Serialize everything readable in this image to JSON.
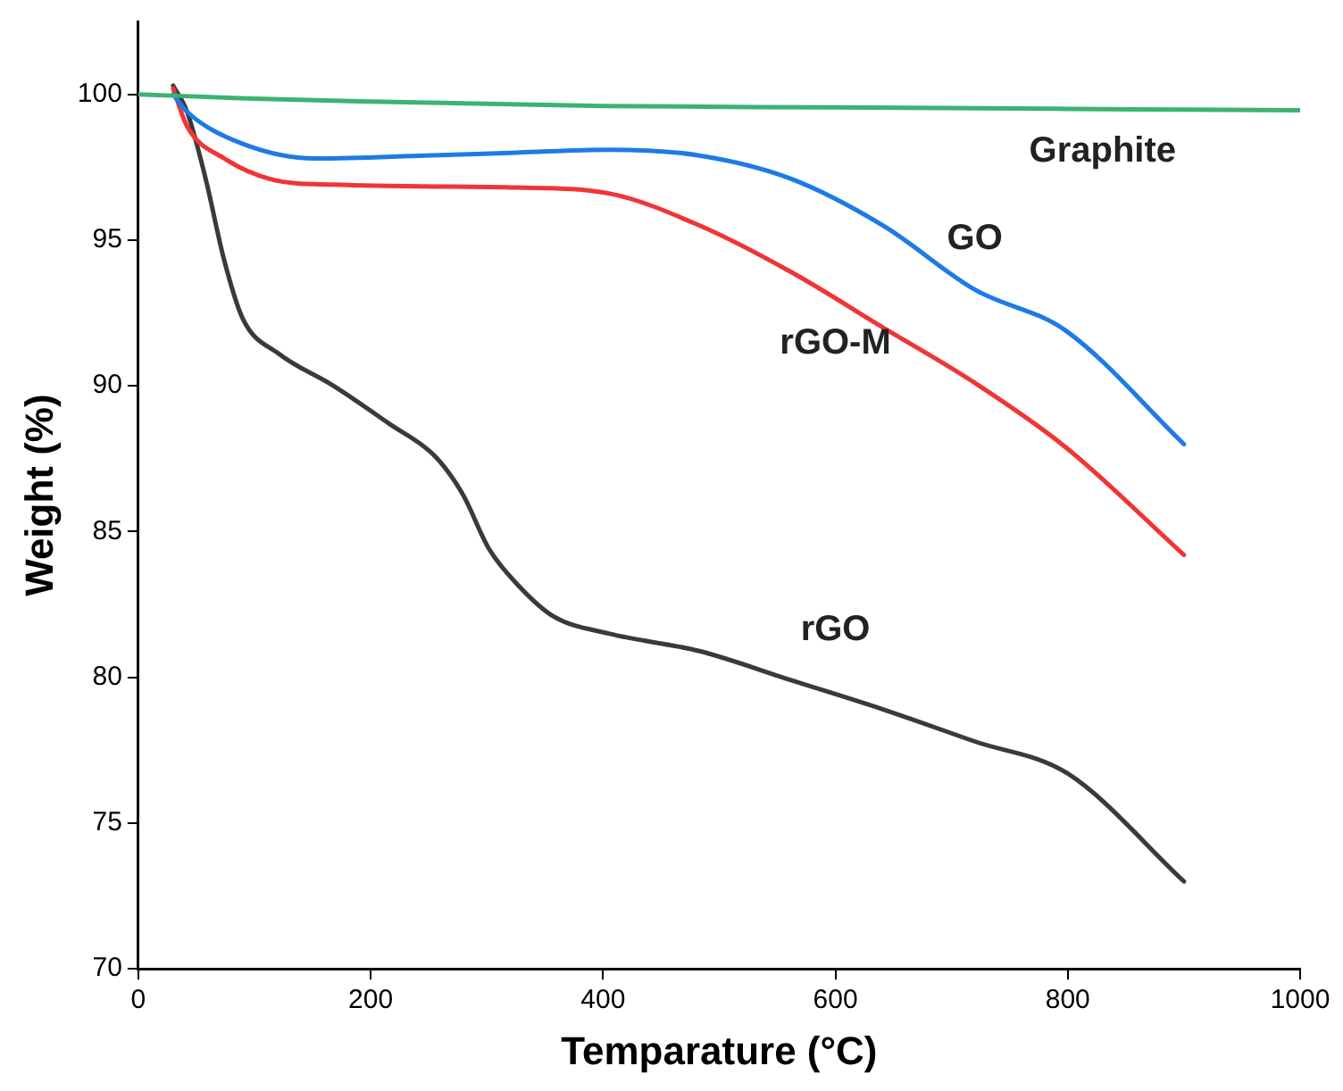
{
  "chart_data": {
    "type": "line",
    "xlabel": "Temparature (°C)",
    "ylabel": "Weight (%)",
    "xlim": [
      0,
      1000
    ],
    "xticks": [
      0,
      200,
      400,
      600,
      800,
      1000
    ],
    "ylim": [
      70,
      102.5
    ],
    "yticks": [
      70,
      75,
      80,
      85,
      90,
      95,
      100
    ],
    "grid": false,
    "legend": false,
    "marker": "none",
    "line_style": "solid",
    "series": [
      {
        "name": "Graphite",
        "color": "#3cb371",
        "x": [
          0,
          100,
          200,
          400,
          600,
          800,
          1000
        ],
        "values": [
          100,
          99.85,
          99.75,
          99.6,
          99.55,
          99.5,
          99.45
        ]
      },
      {
        "name": "GO",
        "color": "#1e7be6",
        "x": [
          30,
          42,
          90,
          153,
          247,
          326,
          405,
          483,
          562,
          641,
          720,
          798,
          900
        ],
        "values": [
          100,
          99.4,
          98.3,
          97.8,
          97.9,
          98,
          98.1,
          97.9,
          97.1,
          95.5,
          93.3,
          91.9,
          88
        ]
      },
      {
        "name": "rGO-M",
        "color": "#f03535",
        "x": [
          30,
          42,
          74,
          113,
          168,
          326,
          405,
          483,
          562,
          641,
          720,
          798,
          900
        ],
        "values": [
          100.2,
          98.9,
          97.8,
          97.1,
          96.9,
          96.8,
          96.6,
          95.5,
          93.9,
          92,
          90.1,
          87.9,
          84.2
        ]
      },
      {
        "name": "rGO",
        "color": "#3a3a3a",
        "x": [
          30,
          42,
          58,
          74,
          90,
          121,
          168,
          216,
          255,
          279,
          302,
          326,
          357,
          405,
          483,
          562,
          641,
          720,
          800,
          900
        ],
        "values": [
          100.3,
          99.4,
          97.1,
          94.3,
          92.3,
          91.1,
          90,
          88.7,
          87.6,
          86.3,
          84.4,
          83.2,
          82.1,
          81.5,
          80.9,
          79.9,
          78.9,
          77.8,
          76.7,
          73
        ]
      }
    ]
  }
}
